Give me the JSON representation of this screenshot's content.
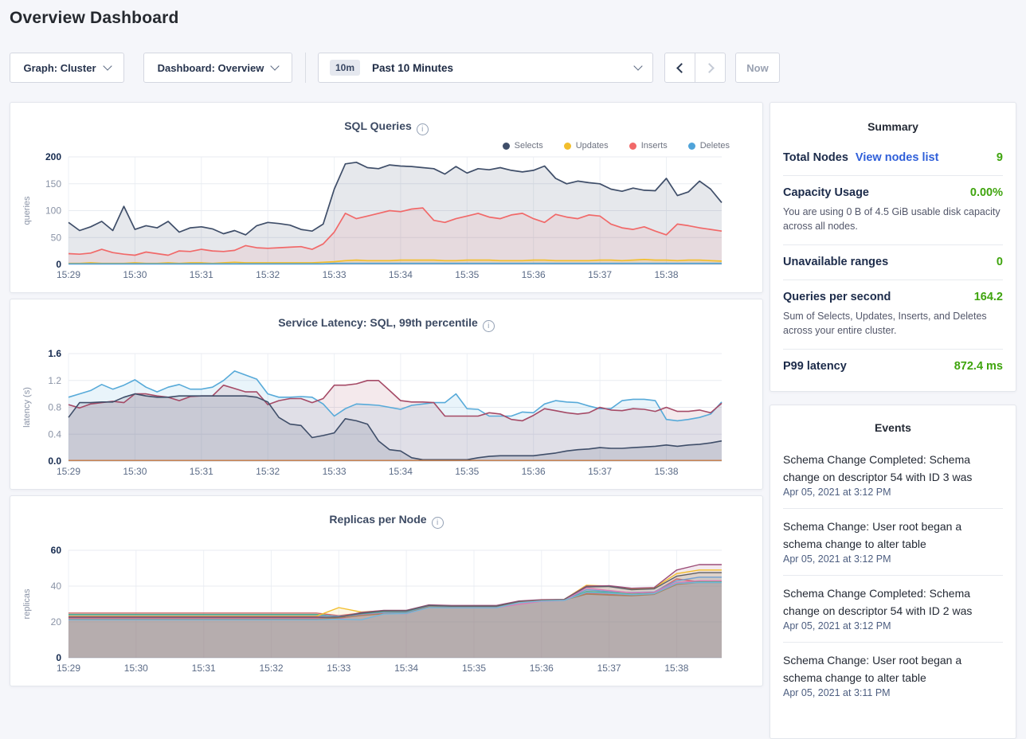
{
  "header": {
    "title": "Overview Dashboard"
  },
  "controls": {
    "graph_dropdown": {
      "label": "Graph: Cluster"
    },
    "dashboard_dropdown": {
      "label": "Dashboard: Overview"
    },
    "time_picker": {
      "badge": "10m",
      "label": "Past 10 Minutes"
    },
    "now_button": "Now"
  },
  "summary": {
    "title": "Summary",
    "accent_green": "#3fa40e",
    "link_blue": "#2f5fd9",
    "rows": [
      {
        "label": "Total Nodes",
        "link": "View nodes list",
        "value": "9"
      },
      {
        "label": "Capacity Usage",
        "value": "0.00%",
        "desc": "You are using 0 B of 4.5 GiB usable disk capacity across all nodes."
      },
      {
        "label": "Unavailable ranges",
        "value": "0"
      },
      {
        "label": "Queries per second",
        "value": "164.2",
        "desc": "Sum of Selects, Updates, Inserts, and Deletes across your entire cluster."
      },
      {
        "label": "P99 latency",
        "value": "872.4 ms"
      }
    ]
  },
  "events": {
    "title": "Events",
    "items": [
      {
        "message": "Schema Change Completed: Schema change on descriptor 54 with ID 3 was",
        "timestamp": "Apr 05, 2021 at 3:12 PM"
      },
      {
        "message": "Schema Change: User root began a schema change to alter table",
        "timestamp": "Apr 05, 2021 at 3:12 PM"
      },
      {
        "message": "Schema Change Completed: Schema change on descriptor 54 with ID 2 was",
        "timestamp": "Apr 05, 2021 at 3:12 PM"
      },
      {
        "message": "Schema Change: User root began a schema change to alter table",
        "timestamp": "Apr 05, 2021 at 3:11 PM"
      }
    ]
  },
  "chart_data": [
    {
      "type": "area",
      "title": "SQL Queries",
      "ylabel": "queries",
      "ymax": 200,
      "yticks": [
        [
          0,
          "0"
        ],
        [
          50,
          "50"
        ],
        [
          100,
          "100"
        ],
        [
          150,
          "150"
        ],
        [
          200,
          "200"
        ]
      ],
      "x_labels": [
        "15:29",
        "15:30",
        "15:31",
        "15:32",
        "15:33",
        "15:34",
        "15:35",
        "15:36",
        "15:37",
        "15:38"
      ],
      "x_step_s": 10,
      "legend": true,
      "grid": true,
      "legend_position": "top-right",
      "series": [
        {
          "name": "Selects",
          "color": "#3f4e69",
          "fo": 0.13,
          "lw": 1.7,
          "values": [
            78,
            63,
            70,
            80,
            63,
            108,
            65,
            72,
            68,
            80,
            60,
            68,
            70,
            66,
            57,
            63,
            55,
            72,
            78,
            76,
            73,
            65,
            62,
            75,
            140,
            187,
            190,
            180,
            178,
            185,
            183,
            182,
            180,
            178,
            168,
            182,
            170,
            178,
            176,
            180,
            175,
            172,
            175,
            183,
            160,
            150,
            155,
            152,
            150,
            140,
            136,
            142,
            138,
            137,
            160,
            128,
            135,
            155,
            140,
            115
          ]
        },
        {
          "name": "Updates",
          "color": "#f2be2c",
          "fo": 0.18,
          "lw": 1.7,
          "values": [
            2,
            2,
            3,
            2,
            2,
            2,
            3,
            2,
            2,
            3,
            2,
            3,
            3,
            2,
            3,
            4,
            3,
            3,
            3,
            3,
            3,
            3,
            3,
            4,
            5,
            7,
            8,
            7,
            7,
            7,
            8,
            8,
            8,
            8,
            7,
            7,
            8,
            8,
            8,
            7,
            7,
            7,
            8,
            8,
            7,
            7,
            7,
            7,
            8,
            8,
            7,
            8,
            9,
            8,
            8,
            7,
            8,
            8,
            7,
            6
          ]
        },
        {
          "name": "Inserts",
          "color": "#f16969",
          "fo": 0.11,
          "lw": 1.7,
          "values": [
            20,
            19,
            21,
            28,
            22,
            19,
            17,
            23,
            20,
            17,
            25,
            24,
            28,
            25,
            24,
            26,
            35,
            31,
            30,
            31,
            32,
            33,
            28,
            38,
            60,
            95,
            85,
            90,
            95,
            100,
            98,
            103,
            105,
            82,
            78,
            85,
            90,
            95,
            88,
            85,
            92,
            95,
            85,
            78,
            93,
            88,
            85,
            92,
            90,
            75,
            68,
            65,
            70,
            62,
            55,
            75,
            72,
            68,
            65,
            62
          ]
        },
        {
          "name": "Deletes",
          "color": "#4fa3d9",
          "fo": 0.18,
          "lw": 1.7,
          "values": [
            1,
            1,
            1,
            1,
            1,
            1,
            1,
            1,
            1,
            1,
            1,
            1,
            1,
            1,
            1,
            1,
            1,
            1,
            1,
            1,
            1,
            1,
            1,
            1,
            2,
            2,
            2,
            2,
            2,
            2,
            2,
            2,
            2,
            2,
            2,
            2,
            2,
            2,
            2,
            2,
            2,
            2,
            2,
            2,
            2,
            2,
            2,
            2,
            2,
            2,
            2,
            2,
            2,
            2,
            2,
            2,
            2,
            2,
            2,
            2
          ]
        }
      ]
    },
    {
      "type": "area",
      "title": "Service Latency: SQL, 99th percentile",
      "ylabel": "latency (s)",
      "ymax": 1.6,
      "yticks": [
        [
          0,
          "0.0"
        ],
        [
          0.4,
          "0.4"
        ],
        [
          0.8,
          "0.8"
        ],
        [
          1.2,
          "1.2"
        ],
        [
          1.6,
          "1.6"
        ]
      ],
      "x_labels": [
        "15:29",
        "15:30",
        "15:31",
        "15:32",
        "15:33",
        "15:34",
        "15:35",
        "15:36",
        "15:37",
        "15:38"
      ],
      "x_step_s": 10,
      "legend": false,
      "grid": true,
      "series": [
        {
          "color": "#57aad9",
          "fo": 0.13,
          "lw": 1.6,
          "values": [
            0.95,
            1.0,
            1.05,
            1.14,
            1.07,
            1.13,
            1.21,
            1.1,
            1.03,
            1.1,
            1.14,
            1.07,
            1.07,
            1.1,
            1.2,
            1.34,
            1.28,
            1.22,
            1.0,
            0.95,
            0.95,
            0.96,
            0.95,
            0.85,
            0.67,
            0.78,
            0.85,
            0.84,
            0.83,
            0.8,
            0.77,
            0.83,
            0.85,
            0.87,
            0.87,
            1.0,
            0.78,
            0.77,
            0.67,
            0.67,
            0.67,
            0.73,
            0.72,
            0.85,
            0.9,
            0.88,
            0.87,
            0.82,
            0.78,
            0.78,
            0.9,
            0.92,
            0.92,
            0.9,
            0.62,
            0.6,
            0.62,
            0.65,
            0.7,
            0.88
          ]
        },
        {
          "color": "#a54a66",
          "fo": 0.12,
          "lw": 1.6,
          "values": [
            0.84,
            0.79,
            0.85,
            0.87,
            0.89,
            0.87,
            1.0,
            1.0,
            0.97,
            0.95,
            0.9,
            0.96,
            0.97,
            0.97,
            1.13,
            1.08,
            1.03,
            1.03,
            0.84,
            0.9,
            0.93,
            0.93,
            0.87,
            0.93,
            1.13,
            1.13,
            1.15,
            1.2,
            1.2,
            1.05,
            0.9,
            0.88,
            0.88,
            0.87,
            0.67,
            0.67,
            0.67,
            0.67,
            0.72,
            0.7,
            0.62,
            0.6,
            0.68,
            0.78,
            0.75,
            0.72,
            0.7,
            0.72,
            0.8,
            0.76,
            0.75,
            0.78,
            0.77,
            0.74,
            0.8,
            0.74,
            0.74,
            0.76,
            0.72,
            0.86
          ]
        },
        {
          "color": "#3f4e69",
          "fo": 0.14,
          "lw": 1.6,
          "values": [
            0.65,
            0.87,
            0.87,
            0.88,
            0.88,
            0.95,
            1.0,
            0.97,
            0.95,
            0.95,
            0.97,
            0.97,
            0.97,
            0.97,
            0.97,
            0.97,
            0.97,
            0.95,
            0.88,
            0.65,
            0.55,
            0.53,
            0.35,
            0.38,
            0.42,
            0.63,
            0.6,
            0.55,
            0.3,
            0.17,
            0.15,
            0.05,
            0.02,
            0.02,
            0.02,
            0.02,
            0.02,
            0.05,
            0.07,
            0.08,
            0.08,
            0.08,
            0.08,
            0.1,
            0.12,
            0.15,
            0.17,
            0.18,
            0.2,
            0.19,
            0.19,
            0.2,
            0.21,
            0.22,
            0.24,
            0.22,
            0.24,
            0.25,
            0.27,
            0.3
          ]
        },
        {
          "color": "#c97c45",
          "fill": false,
          "lw": 1.3,
          "values": [
            0.01,
            0.01,
            0.01,
            0.01,
            0.01,
            0.01,
            0.01,
            0.01,
            0.01,
            0.01,
            0.01,
            0.01,
            0.01,
            0.01,
            0.01,
            0.01,
            0.01,
            0.01,
            0.01,
            0.01,
            0.01,
            0.01,
            0.01,
            0.01,
            0.01,
            0.01,
            0.01,
            0.01,
            0.01,
            0.01,
            0.01,
            0.01,
            0.01,
            0.01,
            0.01,
            0.01,
            0.01,
            0.01,
            0.01,
            0.01,
            0.01,
            0.01,
            0.01,
            0.01,
            0.01,
            0.01,
            0.01,
            0.01,
            0.01,
            0.01,
            0.01,
            0.01,
            0.01,
            0.01,
            0.01,
            0.01,
            0.01,
            0.01,
            0.01,
            0.01
          ]
        }
      ]
    },
    {
      "type": "area",
      "title": "Replicas per Node",
      "ylabel": "replicas",
      "ymax": 60,
      "yticks": [
        [
          0,
          "0"
        ],
        [
          20,
          "20"
        ],
        [
          40,
          "40"
        ],
        [
          60,
          "60"
        ]
      ],
      "x_labels": [
        "15:29",
        "15:30",
        "15:31",
        "15:32",
        "15:33",
        "15:34",
        "15:35",
        "15:36",
        "15:37",
        "15:38"
      ],
      "x_step_s": 20,
      "legend": false,
      "grid": true,
      "series": [
        {
          "color": "#d16a6a",
          "fo": 0.12,
          "lw": 1.4,
          "values": [
            25,
            25,
            25,
            25,
            25,
            25,
            25,
            25,
            25,
            25,
            25,
            25,
            23.5,
            25,
            26,
            26,
            29,
            28.5,
            28.5,
            28.5,
            31,
            32,
            32.3,
            36,
            35.5,
            35,
            36.5,
            44,
            42.5,
            42.5
          ]
        },
        {
          "color": "#4caf82",
          "fo": 0.12,
          "lw": 1.4,
          "values": [
            24.2,
            24.2,
            24.2,
            24.2,
            24.2,
            24.2,
            24.2,
            24.2,
            24.2,
            24.2,
            24.2,
            24.2,
            23,
            24.5,
            25.5,
            25.5,
            28.8,
            28.3,
            28.3,
            28.3,
            30.8,
            31.8,
            32,
            37,
            36.5,
            35.5,
            36,
            41.5,
            42.5,
            42.5
          ]
        },
        {
          "color": "#6f9fd0",
          "fo": 0.12,
          "lw": 1.4,
          "values": [
            23.6,
            23.6,
            23.6,
            23.6,
            23.6,
            23.6,
            23.6,
            23.6,
            23.6,
            23.6,
            23.6,
            23.6,
            23.2,
            24,
            25.2,
            25.3,
            28.6,
            28.2,
            28.2,
            28.2,
            31,
            31.8,
            32.1,
            38,
            37,
            36.5,
            36.8,
            43,
            45,
            45
          ]
        },
        {
          "color": "#f2be2c",
          "fo": 0.12,
          "lw": 1.4,
          "values": [
            23.2,
            23.2,
            23.2,
            23.2,
            23.2,
            23.2,
            23.2,
            23.2,
            23.2,
            23.2,
            23.2,
            23.2,
            28,
            25.5,
            26.3,
            26.3,
            29.3,
            29,
            29,
            29,
            31.5,
            32.2,
            32.5,
            40.5,
            40,
            38.5,
            39,
            47,
            49,
            49
          ]
        },
        {
          "color": "#9c4d78",
          "fo": 0.12,
          "lw": 1.4,
          "values": [
            22.8,
            22.8,
            22.8,
            22.8,
            22.8,
            22.8,
            22.8,
            22.8,
            22.8,
            22.8,
            22.8,
            22.8,
            22.5,
            25.3,
            26.5,
            26.5,
            29.5,
            29.2,
            29.2,
            29.2,
            31.7,
            32.4,
            32.6,
            40,
            40.2,
            38.8,
            39.2,
            49,
            52,
            52
          ]
        },
        {
          "color": "#5d6069",
          "fo": 0.12,
          "lw": 1.4,
          "values": [
            22.4,
            22.4,
            22.4,
            22.4,
            22.4,
            22.4,
            22.4,
            22.4,
            22.4,
            22.4,
            22.4,
            22.4,
            22.8,
            24.8,
            26.2,
            26.2,
            29.2,
            28.8,
            28.8,
            28.8,
            31.4,
            32.1,
            32.4,
            39.5,
            39.8,
            38,
            38.5,
            45.5,
            47.5,
            47.5
          ]
        },
        {
          "color": "#dd7ab2",
          "fo": 0.12,
          "lw": 1.4,
          "values": [
            22,
            22,
            22,
            22,
            22,
            22,
            22,
            22,
            22,
            22,
            22,
            22,
            21.8,
            23.8,
            24.8,
            24.6,
            28.2,
            28,
            28,
            28,
            29.8,
            31.5,
            31.9,
            39,
            37.5,
            36.2,
            36.6,
            42,
            43,
            43
          ]
        },
        {
          "color": "#a9825d",
          "fo": 0.12,
          "lw": 1.4,
          "values": [
            21.6,
            21.6,
            21.6,
            21.6,
            21.6,
            21.6,
            21.6,
            21.6,
            21.6,
            21.6,
            21.6,
            21.6,
            22.2,
            23.6,
            24.6,
            24.9,
            28.4,
            28.1,
            28.1,
            28.1,
            30.9,
            31.9,
            32.2,
            35.5,
            35,
            34.6,
            35.4,
            41,
            42,
            42
          ]
        },
        {
          "color": "#74b7dc",
          "fo": 0.12,
          "lw": 1.4,
          "values": [
            21.2,
            21.2,
            21.2,
            21.2,
            21.2,
            21.2,
            21.2,
            21.2,
            21.2,
            21.2,
            21.2,
            21.2,
            21.5,
            21.2,
            24.4,
            24.7,
            28,
            27.9,
            27.9,
            27.9,
            30.7,
            31.7,
            32,
            36.5,
            36,
            35.2,
            35.8,
            41.5,
            42,
            42
          ]
        }
      ]
    }
  ]
}
